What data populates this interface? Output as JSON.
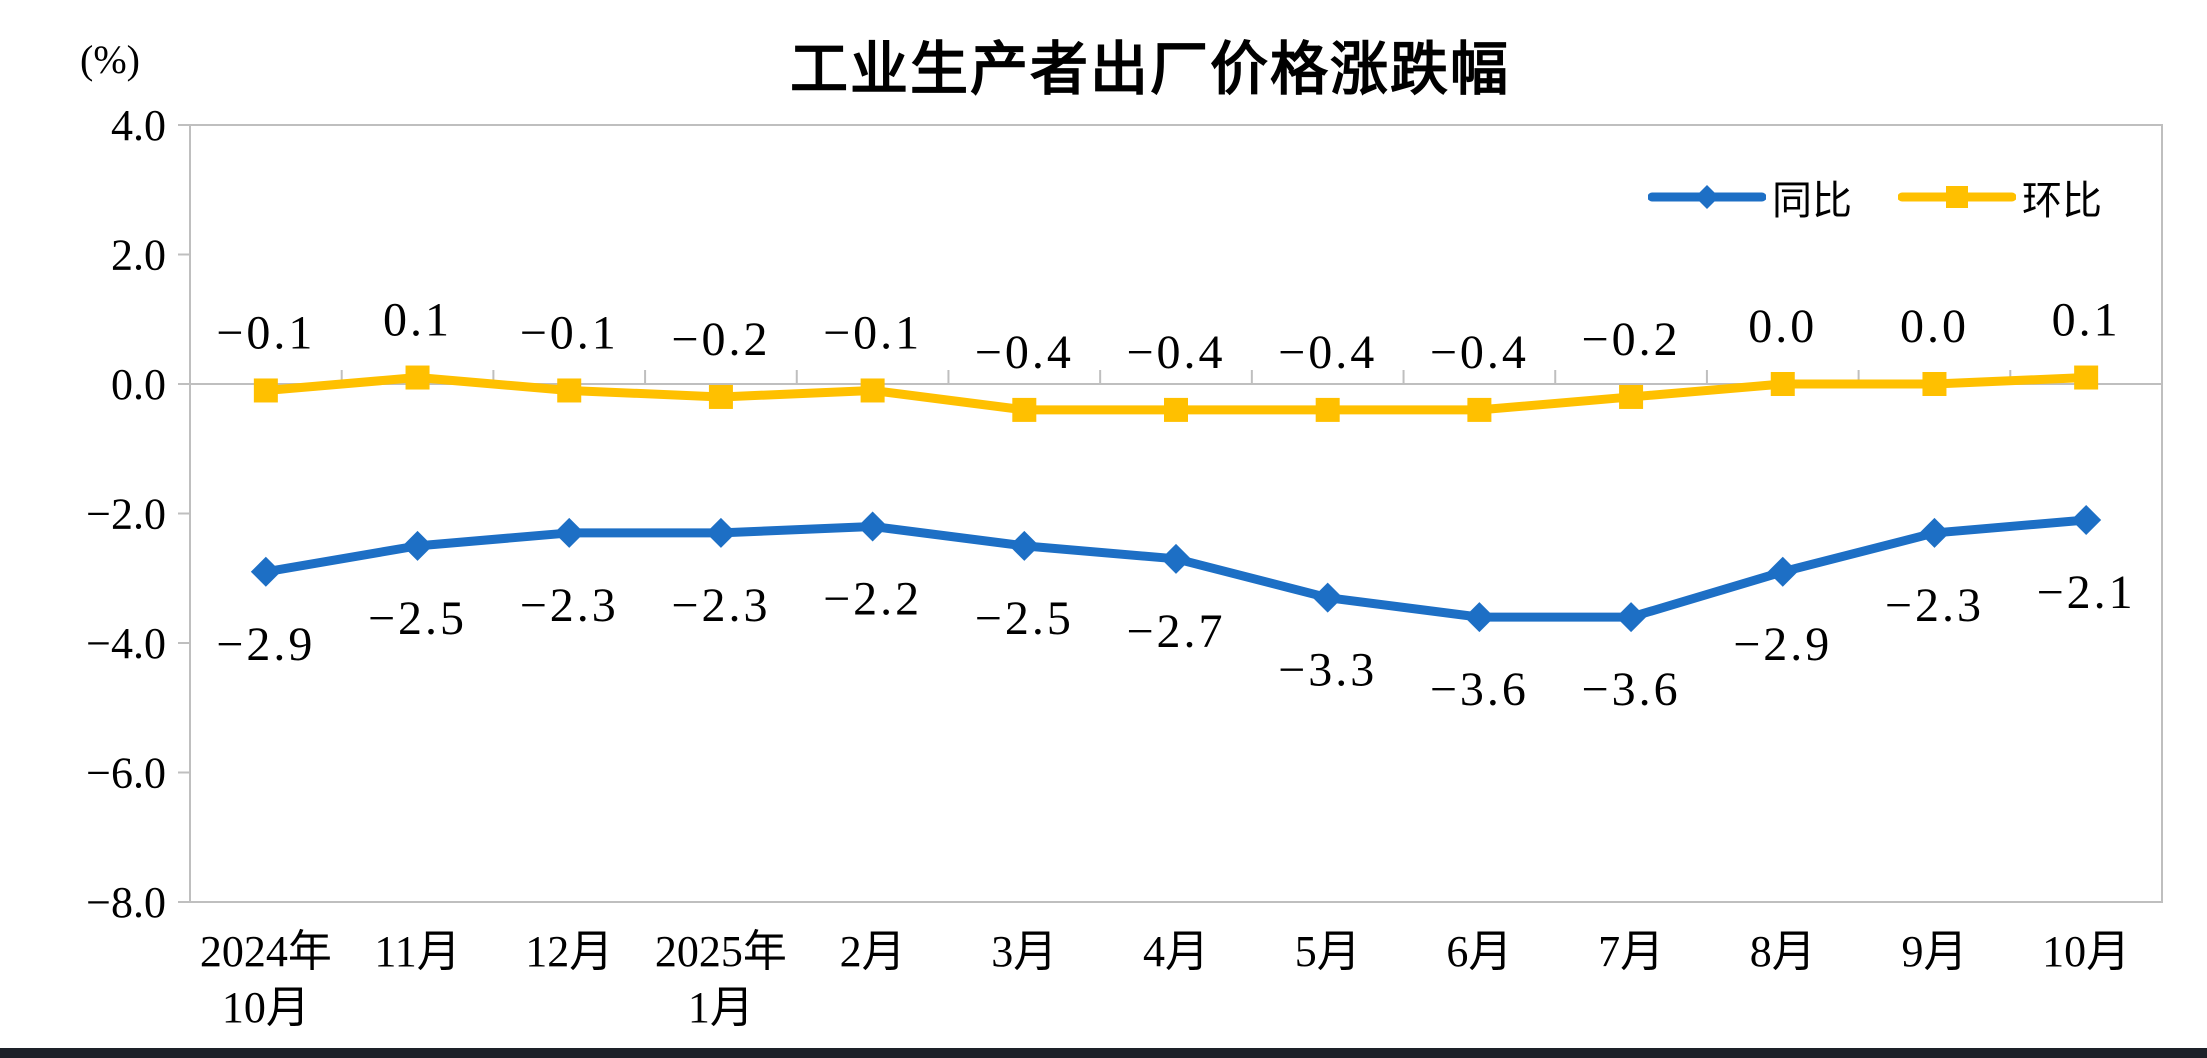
{
  "page": {
    "background": "#ffffff",
    "bottom_bar_color": "#1d2129"
  },
  "chart_data": {
    "type": "line",
    "title": "工业生产者出厂价格涨跌幅",
    "unit_label": "(%)",
    "categories": [
      "2024年10月",
      "11月",
      "12月",
      "2025年1月",
      "2月",
      "3月",
      "4月",
      "5月",
      "6月",
      "7月",
      "8月",
      "9月",
      "10月"
    ],
    "x_tick_lines": [
      [
        "2024年",
        "10月"
      ],
      [
        "11月"
      ],
      [
        "12月"
      ],
      [
        "2025年",
        "1月"
      ],
      [
        "2月"
      ],
      [
        "3月"
      ],
      [
        "4月"
      ],
      [
        "5月"
      ],
      [
        "6月"
      ],
      [
        "7月"
      ],
      [
        "8月"
      ],
      [
        "9月"
      ],
      [
        "10月"
      ]
    ],
    "series": [
      {
        "name": "同比",
        "color": "#1d6fc5",
        "marker": "diamond",
        "label_position": "below",
        "values": [
          -2.9,
          -2.5,
          -2.3,
          -2.3,
          -2.2,
          -2.5,
          -2.7,
          -3.3,
          -3.6,
          -3.6,
          -2.9,
          -2.3,
          -2.1
        ],
        "labels": [
          "-2.9",
          "-2.5",
          "-2.3",
          "-2.3",
          "-2.2",
          "-2.5",
          "-2.7",
          "-3.3",
          "-3.6",
          "-3.6",
          "-2.9",
          "-2.3",
          "-2.1"
        ]
      },
      {
        "name": "环比",
        "color": "#ffc000",
        "marker": "square",
        "label_position": "above",
        "values": [
          -0.1,
          0.1,
          -0.1,
          -0.2,
          -0.1,
          -0.4,
          -0.4,
          -0.4,
          -0.4,
          -0.2,
          0.0,
          0.0,
          0.1
        ],
        "labels": [
          "-0.1",
          "0.1",
          "-0.1",
          "-0.2",
          "-0.1",
          "-0.4",
          "-0.4",
          "-0.4",
          "-0.4",
          "-0.2",
          "0.0",
          "0.0",
          "0.1"
        ]
      }
    ],
    "ylim": [
      -8.0,
      4.0
    ],
    "yticks": [
      4.0,
      2.0,
      0.0,
      -2.0,
      -4.0,
      -6.0,
      -8.0
    ],
    "ytick_labels": [
      "4.0",
      "2.0",
      "0.0",
      "-2.0",
      "-4.0",
      "-6.0",
      "-8.0"
    ],
    "grid": false,
    "legend_position": "top-right",
    "axis_color": "#bfbfbf",
    "text_color": "#000000"
  }
}
